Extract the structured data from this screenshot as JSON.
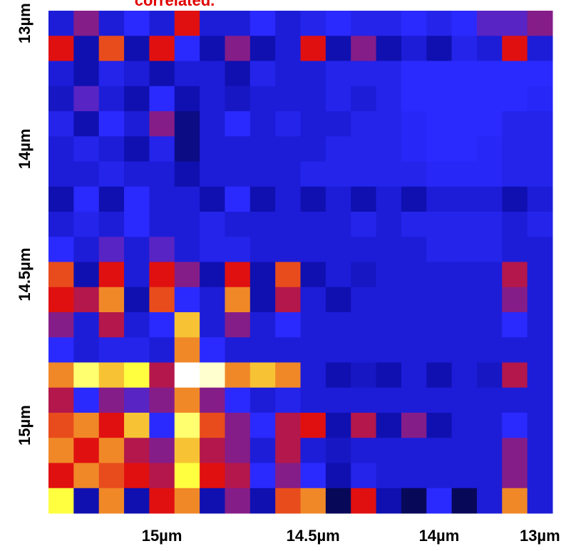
{
  "chart_data": {
    "type": "heatmap",
    "title": "correlated.",
    "x_categories": [
      null,
      null,
      null,
      null,
      "15µm",
      null,
      null,
      null,
      null,
      null,
      "14.5µm",
      null,
      null,
      null,
      null,
      "14µm",
      null,
      null,
      null,
      "13µm"
    ],
    "y_categories": [
      "13µm",
      null,
      null,
      null,
      null,
      "14µm",
      null,
      null,
      null,
      null,
      "14.5µm",
      null,
      null,
      null,
      null,
      null,
      "15µm",
      null,
      null,
      null
    ],
    "zlim": [
      0,
      1
    ],
    "colormap": [
      "#000000",
      "#1010b0",
      "#2a2aff",
      "#e01010",
      "#ffff40",
      "#ffffff"
    ],
    "values": [
      [
        0.3,
        0.5,
        0.3,
        0.4,
        0.3,
        0.6,
        0.3,
        0.3,
        0.4,
        0.3,
        0.35,
        0.4,
        0.35,
        0.35,
        0.4,
        0.35,
        0.4,
        0.45,
        0.45,
        0.5
      ],
      [
        0.6,
        0.2,
        0.65,
        0.2,
        0.6,
        0.4,
        0.2,
        0.5,
        0.2,
        0.3,
        0.6,
        0.2,
        0.5,
        0.2,
        0.3,
        0.2,
        0.35,
        0.3,
        0.6,
        0.3
      ],
      [
        0.3,
        0.2,
        0.35,
        0.3,
        0.2,
        0.3,
        0.3,
        0.2,
        0.35,
        0.3,
        0.3,
        0.35,
        0.35,
        0.35,
        0.4,
        0.4,
        0.4,
        0.4,
        0.4,
        0.4
      ],
      [
        0.25,
        0.45,
        0.3,
        0.2,
        0.4,
        0.2,
        0.3,
        0.25,
        0.3,
        0.3,
        0.3,
        0.35,
        0.3,
        0.35,
        0.4,
        0.4,
        0.4,
        0.4,
        0.4,
        0.38
      ],
      [
        0.35,
        0.2,
        0.4,
        0.3,
        0.5,
        0.15,
        0.3,
        0.4,
        0.3,
        0.35,
        0.3,
        0.3,
        0.35,
        0.35,
        0.38,
        0.4,
        0.4,
        0.4,
        0.35,
        0.35
      ],
      [
        0.3,
        0.35,
        0.3,
        0.2,
        0.35,
        0.15,
        0.3,
        0.3,
        0.3,
        0.3,
        0.3,
        0.35,
        0.35,
        0.35,
        0.38,
        0.4,
        0.4,
        0.38,
        0.35,
        0.35
      ],
      [
        0.3,
        0.3,
        0.35,
        0.3,
        0.3,
        0.2,
        0.3,
        0.3,
        0.3,
        0.3,
        0.35,
        0.35,
        0.35,
        0.35,
        0.35,
        0.38,
        0.38,
        0.38,
        0.35,
        0.35
      ],
      [
        0.2,
        0.4,
        0.2,
        0.4,
        0.3,
        0.3,
        0.2,
        0.4,
        0.2,
        0.3,
        0.2,
        0.3,
        0.2,
        0.3,
        0.2,
        0.3,
        0.3,
        0.3,
        0.2,
        0.3
      ],
      [
        0.3,
        0.35,
        0.3,
        0.4,
        0.3,
        0.3,
        0.35,
        0.3,
        0.3,
        0.3,
        0.3,
        0.3,
        0.35,
        0.3,
        0.35,
        0.35,
        0.35,
        0.35,
        0.3,
        0.35
      ],
      [
        0.4,
        0.3,
        0.45,
        0.3,
        0.45,
        0.3,
        0.35,
        0.35,
        0.3,
        0.3,
        0.3,
        0.3,
        0.3,
        0.3,
        0.3,
        0.35,
        0.35,
        0.35,
        0.3,
        0.3
      ],
      [
        0.65,
        0.2,
        0.6,
        0.3,
        0.6,
        0.5,
        0.2,
        0.6,
        0.2,
        0.65,
        0.2,
        0.3,
        0.25,
        0.3,
        0.3,
        0.3,
        0.3,
        0.3,
        0.55,
        0.3
      ],
      [
        0.6,
        0.55,
        0.7,
        0.2,
        0.65,
        0.4,
        0.3,
        0.7,
        0.2,
        0.55,
        0.3,
        0.2,
        0.3,
        0.3,
        0.3,
        0.3,
        0.3,
        0.3,
        0.5,
        0.3
      ],
      [
        0.5,
        0.3,
        0.55,
        0.3,
        0.4,
        0.75,
        0.3,
        0.5,
        0.3,
        0.4,
        0.3,
        0.3,
        0.3,
        0.3,
        0.3,
        0.3,
        0.3,
        0.3,
        0.4,
        0.3
      ],
      [
        0.4,
        0.3,
        0.35,
        0.35,
        0.3,
        0.7,
        0.4,
        0.3,
        0.3,
        0.3,
        0.3,
        0.3,
        0.3,
        0.3,
        0.3,
        0.3,
        0.3,
        0.3,
        0.3,
        0.3
      ],
      [
        0.7,
        0.85,
        0.75,
        0.8,
        0.55,
        1.0,
        0.95,
        0.7,
        0.75,
        0.7,
        0.3,
        0.2,
        0.25,
        0.2,
        0.3,
        0.2,
        0.3,
        0.25,
        0.55,
        0.3
      ],
      [
        0.55,
        0.4,
        0.5,
        0.45,
        0.5,
        0.7,
        0.5,
        0.4,
        0.3,
        0.35,
        0.3,
        0.3,
        0.3,
        0.3,
        0.3,
        0.3,
        0.3,
        0.3,
        0.3,
        0.3
      ],
      [
        0.65,
        0.7,
        0.6,
        0.75,
        0.4,
        0.85,
        0.65,
        0.5,
        0.4,
        0.55,
        0.6,
        0.2,
        0.55,
        0.2,
        0.5,
        0.2,
        0.3,
        0.3,
        0.4,
        0.3
      ],
      [
        0.7,
        0.6,
        0.7,
        0.55,
        0.5,
        0.75,
        0.55,
        0.5,
        0.3,
        0.55,
        0.3,
        0.25,
        0.3,
        0.3,
        0.3,
        0.3,
        0.3,
        0.3,
        0.5,
        0.3
      ],
      [
        0.6,
        0.7,
        0.65,
        0.6,
        0.55,
        0.8,
        0.6,
        0.55,
        0.4,
        0.5,
        0.4,
        0.2,
        0.35,
        0.3,
        0.3,
        0.3,
        0.3,
        0.3,
        0.5,
        0.3
      ],
      [
        0.8,
        0.2,
        0.7,
        0.2,
        0.6,
        0.7,
        0.2,
        0.5,
        0.2,
        0.65,
        0.7,
        0.1,
        0.6,
        0.2,
        0.1,
        0.4,
        0.1,
        0.3,
        0.7,
        0.3
      ]
    ]
  }
}
